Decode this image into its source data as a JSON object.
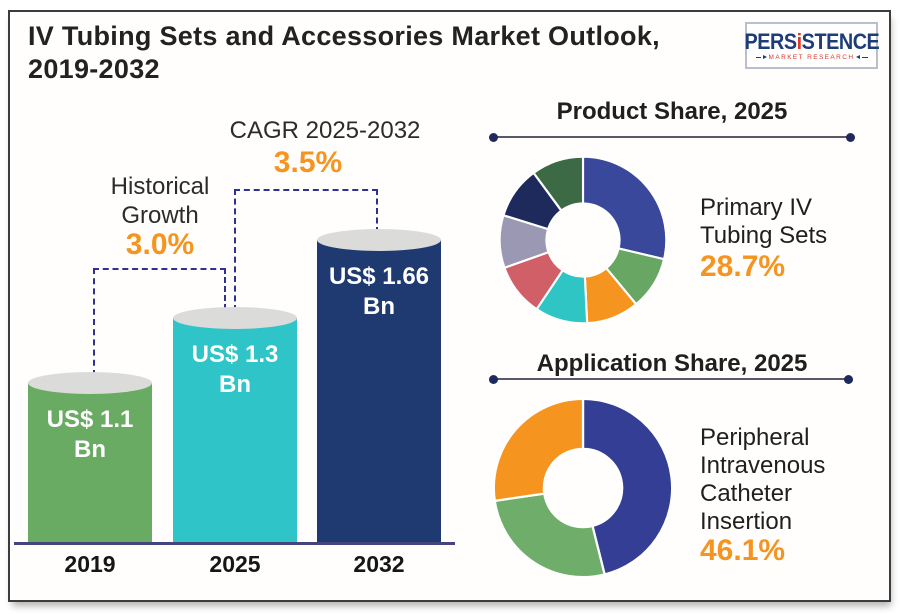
{
  "page": {
    "title_line1": "IV Tubing Sets and Accessories Market Outlook,",
    "title_line2": "2019-2032"
  },
  "logo": {
    "wordmark_pre": "PERS",
    "wordmark_i": "i",
    "wordmark_post": "STENCE",
    "tagline": "MARKET RESEARCH"
  },
  "colors": {
    "accent_orange": "#f5941f",
    "ink": "#1f1f1f",
    "dashed_line": "#2e3192",
    "axis": "#45457d",
    "cylinder_top": "#dbdbda",
    "logo_navy": "#1d3c78",
    "logo_red": "#d93a2b",
    "divider": "#595967",
    "divider_dot": "#1e2a5c"
  },
  "chart_data": [
    {
      "type": "bar",
      "title": "IV Tubing Sets and Accessories Market Outlook, 2019-2032",
      "categories": [
        "2019",
        "2025",
        "2032"
      ],
      "values": [
        1.1,
        1.3,
        1.66
      ],
      "unit": "US$ Bn",
      "value_labels": [
        "US$ 1.1 Bn",
        "US$ 1.3 Bn",
        "US$ 1.66 Bn"
      ],
      "bar_colors": [
        "#6aab63",
        "#2fc5c8",
        "#1e3a70"
      ],
      "annotations": [
        {
          "label": "Historical Growth",
          "value": "3.0%",
          "between": [
            "2019",
            "2025"
          ]
        },
        {
          "label": "CAGR 2025-2032",
          "value": "3.5%",
          "between": [
            "2025",
            "2032"
          ]
        }
      ]
    },
    {
      "type": "donut",
      "title": "Product Share, 2025",
      "highlight": {
        "name": "Primary IV Tubing Sets",
        "value": "28.7%"
      },
      "segments": [
        {
          "name": "Primary IV Tubing Sets",
          "value": 28.7,
          "color": "#3a489c"
        },
        {
          "name": "",
          "value": 10.3,
          "color": "#67a763"
        },
        {
          "name": "",
          "value": 10.2,
          "color": "#f5941f"
        },
        {
          "name": "",
          "value": 10.2,
          "color": "#2fc5c5"
        },
        {
          "name": "",
          "value": 10.2,
          "color": "#d15f67"
        },
        {
          "name": "",
          "value": 10.2,
          "color": "#9b98b3"
        },
        {
          "name": "",
          "value": 10.1,
          "color": "#1e2a5c"
        },
        {
          "name": "",
          "value": 10.1,
          "color": "#3c6a45"
        }
      ]
    },
    {
      "type": "donut",
      "title": "Application Share, 2025",
      "highlight": {
        "name": "Peripheral Intravenous Catheter Insertion",
        "value": "46.1%"
      },
      "segments": [
        {
          "name": "Peripheral Intravenous Catheter Insertion",
          "value": 46.1,
          "color": "#333e94"
        },
        {
          "name": "",
          "value": 26.6,
          "color": "#6fae6a"
        },
        {
          "name": "",
          "value": 27.3,
          "color": "#f5941f"
        }
      ]
    }
  ]
}
